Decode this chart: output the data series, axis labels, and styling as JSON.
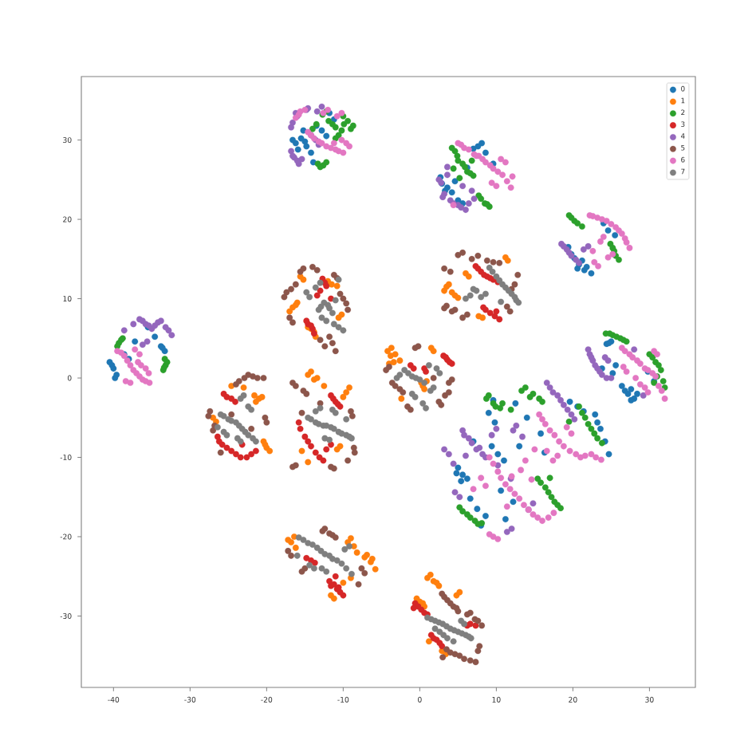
{
  "chart_data": {
    "type": "scatter",
    "xlim": [
      -44.2,
      36.0
    ],
    "ylim": [
      -39.0,
      38.0
    ],
    "xticks": [
      -40,
      -30,
      -20,
      -10,
      0,
      10,
      20,
      30
    ],
    "yticks": [
      -30,
      -20,
      -10,
      0,
      10,
      20,
      30
    ],
    "legend": "top right",
    "marker": "circle",
    "series": [
      {
        "name": "0",
        "color": "#1f77b4",
        "x": [
          -16.2,
          -15.5,
          -14.8,
          -13.5,
          -12.2,
          -15.9,
          -11.2,
          -13.9,
          2.9,
          3.6,
          4.2,
          8.1,
          6.2,
          5.6,
          9.6,
          7.0,
          20.2,
          20.8,
          21.5,
          21.8,
          24.0,
          25.5,
          19.4,
          -40.5,
          -40.0,
          -39.6,
          -33.3,
          -33.8,
          -37.2,
          -35.5,
          -38.0,
          25.0,
          24.4,
          26.4,
          27.2,
          28.0,
          27.6,
          23.8,
          30.6,
          25.6,
          5.0,
          5.6,
          6.2,
          9.0,
          9.8,
          12.5,
          14.0,
          22.9,
          23.6,
          24.2,
          24.7,
          7.0,
          8.0,
          11.2,
          10.6,
          16.3,
          7.5,
          13.0,
          -16.6,
          -15.0,
          -14.2,
          -12.8,
          -11.8,
          -15.2,
          3.3,
          2.7,
          4.6,
          7.6,
          8.6,
          5.0,
          20.6,
          21.2,
          19.8,
          22.4,
          24.6,
          -40.2,
          -39.8,
          -33.6,
          -34.6,
          -38.6,
          24.7,
          26.8,
          27.6,
          28.4,
          25.2,
          29.8,
          19.6,
          20.6,
          21.4,
          9.4,
          10.2,
          11.0,
          4.8,
          5.4,
          9.6,
          6.6,
          8.6,
          12.2,
          15.8,
          23.2
        ],
        "values": [
          29.6,
          30.2,
          29.2,
          31.8,
          30.5,
          28.8,
          32.6,
          27.2,
          24.5,
          24.0,
          23.4,
          29.6,
          26.5,
          22.0,
          27.0,
          28.9,
          15.1,
          14.3,
          13.6,
          14.0,
          19.5,
          18.0,
          16.5,
          2.0,
          1.2,
          0.4,
          3.4,
          4.0,
          4.6,
          6.4,
          2.4,
          4.6,
          4.3,
          -1.0,
          -2.0,
          -2.6,
          -1.4,
          1.2,
          -0.4,
          1.6,
          -11.3,
          -12.2,
          -12.7,
          -4.4,
          -5.6,
          -3.2,
          -5.0,
          -4.6,
          -6.4,
          -8.0,
          -9.6,
          -8.0,
          -18.6,
          -17.8,
          -14.2,
          -9.4,
          -16.5,
          -8.6,
          30.0,
          29.8,
          28.4,
          31.2,
          33.4,
          31.2,
          23.6,
          25.3,
          24.8,
          29.2,
          28.4,
          22.4,
          13.8,
          14.8,
          15.6,
          13.2,
          18.6,
          1.6,
          0.0,
          3.8,
          5.2,
          3.0,
          4.4,
          -1.6,
          -2.8,
          -2.0,
          0.6,
          0.8,
          -3.0,
          -3.6,
          -4.2,
          -8.6,
          -9.6,
          -10.4,
          -12.0,
          -13.0,
          -2.8,
          -15.2,
          -17.4,
          -15.6,
          -7.0,
          -5.6
        ]
      },
      {
        "name": "1",
        "color": "#ff7f0e",
        "x": [
          -16.6,
          -16.0,
          -13.8,
          -14.2,
          -11.5,
          -10.2,
          -15.2,
          3.5,
          4.2,
          5.0,
          7.7,
          6.4,
          11.5,
          -3.7,
          -3.2,
          -2.6,
          1.5,
          0.4,
          0.9,
          -2.4,
          -21.0,
          -21.6,
          -20.4,
          -20.0,
          -26.6,
          -24.6,
          -14.6,
          -13.8,
          -12.5,
          -9.6,
          -10.4,
          -15.4,
          -16.8,
          -16.2,
          -11.6,
          -6.9,
          -6.4,
          -5.8,
          -9.4,
          -8.6,
          -9.0,
          1.0,
          1.8,
          2.5,
          0.0,
          0.6,
          2.9,
          4.8,
          -17.0,
          -16.2,
          -13.6,
          -14.6,
          -12.0,
          -10.8,
          -15.6,
          -10.6,
          3.2,
          3.8,
          4.6,
          8.2,
          11.2,
          6.0,
          -4.2,
          -3.8,
          -3.4,
          1.8,
          0.2,
          0.6,
          -4.0,
          -21.4,
          -20.6,
          -20.2,
          -19.6,
          -27.0,
          -23.0,
          -14.2,
          -13.4,
          -10.0,
          -9.2,
          -10.8,
          -14.6,
          -17.2,
          -16.4,
          -11.2,
          -7.2,
          -6.2,
          -9.0,
          -8.2,
          -10.0,
          1.4,
          2.2,
          -0.4,
          0.4,
          3.4,
          5.2,
          1.2
        ],
        "values": [
          8.9,
          9.5,
          5.8,
          6.2,
          11.8,
          8.0,
          12.4,
          11.5,
          10.8,
          10.1,
          7.8,
          12.8,
          14.8,
          3.8,
          3.0,
          2.2,
          3.8,
          -1.0,
          -0.4,
          -2.6,
          -2.6,
          -2.2,
          -8.0,
          -8.8,
          -5.5,
          -1.0,
          0.4,
          -0.2,
          -1.0,
          -1.8,
          -8.6,
          -9.2,
          -20.7,
          -21.4,
          -27.4,
          -22.3,
          -23.2,
          -24.1,
          -20.7,
          -21.2,
          -25.2,
          -25.2,
          -25.6,
          -26.2,
          -28.2,
          -28.8,
          -34.4,
          -27.4,
          8.4,
          9.2,
          5.2,
          6.4,
          12.2,
          11.6,
          12.8,
          7.6,
          11.0,
          11.8,
          10.4,
          7.6,
          15.2,
          13.2,
          3.4,
          2.8,
          2.0,
          3.4,
          -0.6,
          -1.4,
          1.8,
          -3.0,
          -2.4,
          -8.4,
          -9.2,
          -5.0,
          -1.2,
          0.8,
          0.0,
          -2.4,
          -1.2,
          -9.0,
          -10.6,
          -20.4,
          -20.0,
          -27.8,
          -22.6,
          -22.8,
          -20.2,
          -22.0,
          -25.8,
          -24.8,
          -25.8,
          -27.8,
          -28.4,
          -34.8,
          -27.0,
          -33.2
        ]
      },
      {
        "name": "2",
        "color": "#2ca02c",
        "x": [
          -12.7,
          -11.9,
          -11.0,
          -9.9,
          -9.0,
          -10.6,
          -13.3,
          -12.6,
          -14.0,
          4.2,
          4.9,
          5.6,
          6.2,
          7.0,
          5.2,
          7.7,
          8.5,
          9.1,
          19.5,
          20.2,
          21.2,
          24.9,
          25.4,
          26.0,
          -39.3,
          -38.8,
          -33.3,
          -33.2,
          -33.5,
          24.3,
          25.2,
          26.2,
          27.0,
          30.0,
          30.8,
          31.5,
          32.0,
          31.0,
          8.7,
          9.6,
          10.5,
          11.9,
          13.3,
          14.4,
          16.0,
          20.8,
          21.6,
          22.4,
          23.2,
          15.4,
          16.4,
          17.2,
          18.0,
          5.2,
          6.2,
          7.2,
          8.1,
          19.5,
          -12.2,
          -11.4,
          -10.2,
          -9.4,
          -8.7,
          -11.0,
          -13.0,
          -12.2,
          -13.5,
          -10.0,
          4.6,
          5.0,
          5.9,
          6.6,
          4.4,
          8.0,
          8.8,
          6.8,
          19.8,
          20.6,
          25.2,
          25.6,
          -39.0,
          -39.5,
          -33.0,
          -33.4,
          24.8,
          25.7,
          26.6,
          30.4,
          31.2,
          31.8,
          30.6,
          9.0,
          9.9,
          10.8,
          13.8,
          14.8,
          15.6,
          21.2,
          22.0,
          22.8,
          23.8,
          15.8,
          16.8,
          17.6,
          18.4,
          5.6,
          6.6,
          7.6,
          17.0
        ],
        "values": [
          33.2,
          32.4,
          31.6,
          32.0,
          31.4,
          30.6,
          27.0,
          26.8,
          31.4,
          29.0,
          28.0,
          27.0,
          26.0,
          25.5,
          25.2,
          23.0,
          22.0,
          21.6,
          20.5,
          19.8,
          19.1,
          16.9,
          16.0,
          14.9,
          4.4,
          5.0,
          2.4,
          1.6,
          1.0,
          5.6,
          5.4,
          5.0,
          4.6,
          3.0,
          2.0,
          1.0,
          -1.2,
          0.2,
          -2.6,
          -3.2,
          -3.8,
          -4.0,
          -1.6,
          -2.4,
          -3.0,
          -3.6,
          -5.0,
          -6.4,
          -7.6,
          -12.7,
          -13.8,
          -15.0,
          -16.0,
          -16.3,
          -17.2,
          -18.0,
          -18.3,
          -5.5,
          33.6,
          32.0,
          31.2,
          32.4,
          31.8,
          30.2,
          26.6,
          27.2,
          32.0,
          33.0,
          28.6,
          27.4,
          26.6,
          25.8,
          26.4,
          22.6,
          21.9,
          27.4,
          20.2,
          19.5,
          16.4,
          15.4,
          4.8,
          4.0,
          2.0,
          1.3,
          5.6,
          5.2,
          4.8,
          2.6,
          1.6,
          -0.4,
          -0.6,
          -2.2,
          -3.6,
          -3.2,
          -1.2,
          -2.0,
          -2.6,
          -4.4,
          -5.8,
          -7.0,
          -8.2,
          -13.2,
          -14.4,
          -15.6,
          -16.4,
          -16.8,
          -17.6,
          -18.4,
          -12.6
        ]
      },
      {
        "name": "3",
        "color": "#d62728",
        "x": [
          -14.6,
          -14.0,
          -12.7,
          -12.2,
          -13.4,
          7.3,
          8.0,
          8.8,
          9.6,
          10.2,
          8.3,
          9.2,
          10.4,
          3.1,
          3.6,
          4.2,
          0.8,
          -1.2,
          -26.2,
          -25.2,
          -24.0,
          -22.6,
          -21.4,
          -25.6,
          -24.1,
          -23.2,
          -11.6,
          -11.0,
          -10.4,
          -15.8,
          -15.0,
          -14.2,
          -13.1,
          -12.2,
          -11.6,
          -10.8,
          -10.0,
          -14.8,
          -13.7,
          -11.0,
          -0.6,
          0.2,
          1.0,
          1.5,
          2.2,
          2.9,
          6.2,
          7.3,
          -14.8,
          -14.2,
          -13.8,
          -12.4,
          -13.0,
          -11.6,
          7.6,
          8.4,
          9.2,
          8.6,
          9.8,
          10.0,
          3.4,
          3.9,
          0.6,
          -0.8,
          -25.8,
          -24.6,
          -23.4,
          -22.0,
          -25.2,
          -24.6,
          -26.4,
          -11.3,
          -10.7,
          -15.6,
          -14.6,
          -13.6,
          -12.6,
          -11.6,
          -11.2,
          -10.4,
          -10.6,
          -14.2,
          -11.8,
          -0.2,
          0.6,
          1.8,
          2.6,
          6.6,
          -0.8
        ],
        "values": [
          6.8,
          6.2,
          12.5,
          11.6,
          10.4,
          14.1,
          13.4,
          12.8,
          12.4,
          12.1,
          8.9,
          8.2,
          7.4,
          2.8,
          2.3,
          1.8,
          0.8,
          1.6,
          -8.0,
          -8.8,
          -9.6,
          -10.0,
          -9.2,
          -2.0,
          -3.0,
          -8.4,
          -2.2,
          -3.0,
          -3.6,
          -5.6,
          -7.4,
          -8.6,
          -10.0,
          -9.0,
          -26.2,
          -26.6,
          -27.4,
          -22.7,
          -23.3,
          -25.0,
          -28.4,
          -29.2,
          -29.8,
          -32.4,
          -33.0,
          -33.8,
          -31.2,
          -31.2,
          7.2,
          6.6,
          5.6,
          12.0,
          11.0,
          10.0,
          13.8,
          13.0,
          12.6,
          8.6,
          7.8,
          8.4,
          2.6,
          2.0,
          1.2,
          1.2,
          -8.4,
          -9.2,
          -10.0,
          -9.6,
          -2.4,
          -2.6,
          -7.4,
          -2.6,
          -3.3,
          -6.4,
          -8.0,
          -9.4,
          -10.4,
          -8.4,
          -26.0,
          -27.0,
          -26.4,
          -23.0,
          -25.6,
          -28.8,
          -29.6,
          -32.8,
          -33.4,
          -31.0,
          -29.0
        ]
      },
      {
        "name": "4",
        "color": "#9467bd",
        "x": [
          -16.2,
          -16.6,
          -16.8,
          -16.4,
          -15.8,
          -14.2,
          -13.2,
          -12.8,
          -14.8,
          2.5,
          3.2,
          4.0,
          5.0,
          6.0,
          7.1,
          5.6,
          3.6,
          18.5,
          19.2,
          19.8,
          20.8,
          22.0,
          -36.6,
          -35.8,
          -35.0,
          -34.2,
          -33.2,
          -32.4,
          -36.2,
          -38.6,
          22.2,
          22.6,
          23.2,
          23.8,
          25.0,
          24.2,
          28.0,
          29.2,
          5.6,
          6.4,
          7.4,
          8.6,
          10.2,
          11.9,
          6.0,
          16.6,
          17.4,
          18.4,
          19.3,
          20.2,
          12.6,
          14.8,
          9.4,
          4.6,
          12.0,
          3.2,
          -16.0,
          -16.8,
          -16.6,
          -16.0,
          -15.4,
          -13.6,
          -14.6,
          -13.4,
          2.8,
          3.0,
          4.4,
          5.4,
          6.4,
          3.6,
          6.8,
          18.8,
          19.5,
          20.4,
          21.4,
          -36.2,
          -35.4,
          -34.6,
          -33.8,
          -32.8,
          -37.4,
          -35.6,
          22.4,
          22.9,
          23.5,
          24.4,
          24.6,
          22.0,
          5.8,
          6.8,
          7.8,
          8.2,
          17.0,
          18.0,
          18.8,
          19.8,
          12.2,
          13.4,
          4.4,
          5.2,
          11.4,
          14.2,
          10.0,
          3.8
        ],
        "values": [
          33.4,
          32.2,
          28.6,
          27.8,
          27.0,
          30.6,
          29.4,
          34.2,
          33.8,
          25.0,
          23.2,
          22.4,
          21.8,
          21.2,
          22.6,
          24.2,
          26.6,
          16.9,
          16.2,
          15.4,
          14.5,
          16.6,
          7.4,
          6.8,
          6.2,
          7.0,
          6.4,
          5.4,
          4.2,
          6.0,
          3.0,
          2.2,
          1.2,
          0.4,
          0.0,
          2.6,
          3.6,
          -2.2,
          -6.6,
          -7.6,
          -9.0,
          -10.0,
          -11.0,
          -12.7,
          -9.8,
          -0.6,
          -1.8,
          -2.8,
          -4.0,
          -5.2,
          -6.0,
          -15.8,
          -7.2,
          -14.4,
          -19.0,
          -9.0,
          33.0,
          31.6,
          28.0,
          27.4,
          27.6,
          30.0,
          34.0,
          33.6,
          24.6,
          22.8,
          22.0,
          21.5,
          22.0,
          25.6,
          23.6,
          16.6,
          15.8,
          14.9,
          16.2,
          7.2,
          6.6,
          6.6,
          7.2,
          6.0,
          6.8,
          4.6,
          2.6,
          1.6,
          0.8,
          0.0,
          2.2,
          3.6,
          -7.2,
          -8.2,
          -8.8,
          -9.6,
          -1.2,
          -2.2,
          -3.4,
          -4.6,
          -6.6,
          -7.4,
          -10.8,
          -15.0,
          -19.4,
          -16.6,
          -6.4,
          -9.6
        ]
      },
      {
        "name": "5",
        "color": "#8c564b",
        "x": [
          -17.7,
          -16.8,
          -15.6,
          -14.0,
          -11.2,
          -10.4,
          -9.6,
          -11.8,
          -13.0,
          -17.0,
          3.5,
          4.6,
          6.2,
          5.0,
          6.8,
          8.8,
          10.4,
          12.0,
          11.4,
          4.0,
          -4.4,
          -3.6,
          -2.6,
          2.5,
          3.3,
          1.8,
          -0.6,
          -1.6,
          3.8,
          -22.9,
          -21.8,
          -20.4,
          -27.4,
          -26.8,
          -24.6,
          -22.0,
          -20.2,
          -24.0,
          -16.6,
          -15.2,
          -13.0,
          -9.0,
          -8.5,
          -16.2,
          -11.6,
          -9.4,
          -12.7,
          -11.8,
          -11.0,
          -15.0,
          -7.6,
          -17.2,
          2.9,
          3.6,
          4.4,
          5.0,
          6.2,
          7.2,
          8.1,
          3.5,
          4.6,
          5.8,
          7.3,
          7.8,
          -17.4,
          -16.2,
          -15.2,
          -13.4,
          -10.8,
          -10.0,
          -9.4,
          -11.4,
          -12.4,
          -16.6,
          -11.0,
          3.2,
          4.2,
          5.6,
          5.6,
          7.6,
          9.6,
          12.4,
          11.8,
          3.2,
          12.8,
          -4.0,
          -3.2,
          -2.2,
          2.8,
          3.8,
          -0.2,
          -1.2,
          4.2,
          -22.4,
          -21.2,
          -27.6,
          -27.0,
          -20.0,
          -23.6,
          -26.0,
          -16.2,
          -14.8,
          -8.8,
          -8.6,
          -16.6,
          -11.2,
          -15.4,
          -12.4,
          -11.4,
          -15.4,
          -7.2,
          -16.8,
          -8.0,
          3.2,
          4.0,
          4.8,
          6.6,
          7.6,
          4.0,
          5.2,
          6.6,
          7.6,
          3.0
        ],
        "values": [
          10.2,
          11.2,
          13.4,
          14.0,
          13.0,
          10.6,
          9.4,
          5.2,
          4.8,
          7.6,
          9.1,
          8.6,
          8.0,
          15.5,
          15.0,
          14.8,
          14.5,
          11.2,
          9.0,
          13.4,
          1.0,
          -0.6,
          -1.4,
          -3.0,
          -2.2,
          0.0,
          3.8,
          -3.6,
          -0.6,
          0.0,
          0.2,
          0.0,
          -4.2,
          -6.0,
          -4.6,
          -6.4,
          -5.0,
          -0.8,
          -0.6,
          -1.6,
          -3.2,
          -4.2,
          -9.4,
          -11.0,
          -11.2,
          -10.4,
          -19.3,
          -19.6,
          -20.1,
          -24.0,
          -24.0,
          -21.8,
          -27.2,
          -28.0,
          -28.8,
          -29.4,
          -29.8,
          -30.4,
          -31.2,
          -34.2,
          -34.8,
          -35.4,
          -35.8,
          -33.8,
          10.8,
          11.8,
          13.8,
          13.6,
          12.6,
          10.0,
          8.6,
          4.4,
          4.0,
          7.0,
          3.4,
          8.8,
          8.4,
          7.6,
          15.8,
          15.4,
          14.6,
          11.8,
          8.4,
          13.8,
          13.0,
          1.4,
          -1.0,
          -1.8,
          -3.4,
          -1.8,
          4.0,
          -4.0,
          -0.2,
          0.4,
          0.0,
          -4.8,
          -6.6,
          -5.6,
          -0.4,
          -9.4,
          -1.0,
          -2.0,
          -4.8,
          -8.8,
          -11.2,
          -11.4,
          -4.4,
          -19.0,
          -19.8,
          -24.4,
          -24.6,
          -22.4,
          -26.0,
          -27.6,
          -28.4,
          -29.0,
          -29.6,
          -30.6,
          -34.6,
          -35.0,
          -35.6,
          -34.4,
          -35.2
        ]
      },
      {
        "name": "6",
        "color": "#e377c2",
        "x": [
          -16.2,
          -15.6,
          -14.6,
          -13.8,
          -12.8,
          -11.6,
          -10.6,
          -9.6,
          -10.2,
          -12.0,
          -10.8,
          5.0,
          5.8,
          7.1,
          7.7,
          8.6,
          9.6,
          10.8,
          11.9,
          9.4,
          10.6,
          4.4,
          22.2,
          23.2,
          24.4,
          25.6,
          26.4,
          27.0,
          24.0,
          23.3,
          22.6,
          25.2,
          -39.5,
          -38.6,
          -37.8,
          -37.0,
          -36.2,
          -35.3,
          -36.8,
          -35.8,
          -38.4,
          -37.2,
          26.4,
          27.4,
          28.4,
          29.4,
          30.4,
          31.2,
          32.0,
          28.8,
          27.0,
          29.8,
          30.6,
          9.1,
          10.2,
          11.2,
          12.4,
          13.6,
          14.8,
          16.0,
          17.5,
          9.1,
          10.2,
          11.4,
          13.2,
          16.0,
          17.0,
          18.2,
          19.6,
          21.0,
          22.4,
          23.7,
          18.0,
          8.0,
          15.0,
          7.0,
          19.8,
          -15.8,
          -15.0,
          -14.2,
          -13.2,
          -12.2,
          -11.0,
          -10.0,
          -9.2,
          -11.2,
          -12.6,
          -10.2,
          5.4,
          6.4,
          7.4,
          8.2,
          9.2,
          10.2,
          11.4,
          10.0,
          11.2,
          12.1,
          22.6,
          23.8,
          25.0,
          26.0,
          26.8,
          23.6,
          24.6,
          22.8,
          27.4,
          -39.0,
          -38.2,
          -37.4,
          -36.6,
          -35.8,
          -36.4,
          -35.4,
          -37.8,
          -36.6,
          26.8,
          27.8,
          28.8,
          29.8,
          30.8,
          31.6,
          28.2,
          26.6,
          29.4,
          31.0,
          9.6,
          10.6,
          11.8,
          13.0,
          14.2,
          15.4,
          16.8,
          9.6,
          12.0,
          14.6,
          16.4,
          17.6,
          18.8,
          20.4,
          21.6,
          23.0,
          16.6,
          15.6,
          8.6,
          13.8,
          19.2,
          17.4
        ],
        "values": [
          32.8,
          33.6,
          31.0,
          30.2,
          29.6,
          29.0,
          28.6,
          29.6,
          30.0,
          33.8,
          33.0,
          29.6,
          29.0,
          28.2,
          28.0,
          27.2,
          26.4,
          25.6,
          24.0,
          24.6,
          27.6,
          21.8,
          20.5,
          20.2,
          19.8,
          19.0,
          18.2,
          17.1,
          17.8,
          14.1,
          16.0,
          15.6,
          3.4,
          2.8,
          1.6,
          0.6,
          -0.2,
          -0.6,
          2.0,
          1.2,
          -0.4,
          3.6,
          3.8,
          3.0,
          2.2,
          1.2,
          0.6,
          -1.0,
          -2.6,
          -0.8,
          0.8,
          -1.8,
          3.4,
          -10.0,
          -11.8,
          -13.4,
          -14.6,
          -16.0,
          -17.2,
          -18.0,
          -17.0,
          -19.7,
          -20.3,
          -16.2,
          -11.6,
          -5.2,
          -6.6,
          -8.0,
          -9.2,
          -10.0,
          -9.6,
          -10.3,
          -9.8,
          -12.6,
          -9.0,
          -14.0,
          -7.0,
          33.2,
          33.8,
          30.6,
          29.8,
          29.2,
          28.8,
          28.4,
          29.2,
          29.6,
          33.4,
          33.4,
          29.4,
          28.8,
          28.0,
          27.6,
          26.8,
          26.0,
          24.8,
          24.2,
          27.2,
          25.4,
          20.4,
          20.0,
          19.4,
          18.6,
          17.6,
          17.2,
          15.2,
          14.6,
          16.4,
          3.2,
          2.2,
          1.0,
          0.2,
          -0.4,
          1.6,
          0.6,
          -0.6,
          3.0,
          3.4,
          2.6,
          1.8,
          1.0,
          0.2,
          -1.6,
          0.0,
          1.4,
          -1.2,
          3.0,
          -10.8,
          -12.6,
          -14.0,
          -15.2,
          -16.6,
          -17.6,
          -17.6,
          -20.0,
          -12.4,
          -12.8,
          -5.8,
          -7.2,
          -8.6,
          -9.6,
          -9.8,
          -10.0,
          -9.2,
          -4.6,
          -13.6,
          -10.4,
          -6.2,
          -10.4
        ]
      },
      {
        "name": "7",
        "color": "#7f7f7f",
        "x": [
          -12.5,
          -13.2,
          -11.8,
          -12.8,
          -11.2,
          -10.0,
          -14.8,
          -13.0,
          -10.6,
          9.1,
          10.0,
          10.8,
          11.6,
          12.4,
          12.9,
          7.0,
          6.0,
          8.0,
          -2.0,
          -1.0,
          0.0,
          1.4,
          2.2,
          -0.6,
          0.8,
          -3.0,
          -26.0,
          -25.0,
          -24.0,
          -23.2,
          -22.4,
          -21.4,
          -25.6,
          -23.8,
          -22.0,
          -23.0,
          -14.6,
          -13.6,
          -12.6,
          -11.6,
          -10.6,
          -9.6,
          -8.9,
          -12.4,
          -11.0,
          -13.0,
          -15.8,
          -14.6,
          -13.4,
          -12.4,
          -11.4,
          -10.2,
          -8.9,
          -14.4,
          -12.8,
          -9.8,
          1.0,
          2.0,
          3.0,
          4.0,
          5.0,
          6.0,
          6.7,
          3.6,
          2.6,
          5.4,
          -12.0,
          -12.9,
          -11.4,
          -12.2,
          -10.6,
          -14.4,
          -13.6,
          -11.0,
          9.5,
          10.4,
          11.2,
          12.0,
          12.6,
          7.4,
          6.6,
          8.6,
          10.6,
          -1.5,
          -0.5,
          0.6,
          1.8,
          2.6,
          -1.0,
          0.4,
          -2.6,
          1.2,
          -25.6,
          -24.6,
          -23.6,
          -22.8,
          -21.8,
          -25.2,
          -23.4,
          -22.4,
          -23.4,
          -26.4,
          -14.2,
          -13.2,
          -12.2,
          -11.2,
          -10.2,
          -9.2,
          -11.8,
          -11.4,
          -13.6,
          -9.6,
          -15.2,
          -14.0,
          -12.9,
          -11.8,
          -10.8,
          -9.6,
          -13.8,
          -12.2,
          -9.2,
          -16.0,
          1.5,
          2.5,
          3.5,
          4.5,
          5.5,
          6.4,
          3.1,
          4.4,
          5.8,
          2.0
        ],
        "values": [
          9.5,
          8.6,
          8.8,
          7.6,
          6.8,
          6.0,
          10.8,
          12.0,
          12.4,
          13.9,
          12.8,
          11.8,
          11.0,
          10.2,
          9.5,
          11.2,
          10.0,
          10.2,
          1.0,
          0.2,
          -0.2,
          -1.6,
          1.2,
          -2.4,
          -3.8,
          0.0,
          -4.6,
          -5.2,
          -5.6,
          -6.4,
          -7.2,
          -8.0,
          -6.8,
          -7.6,
          -4.0,
          -2.2,
          -5.0,
          -5.6,
          -6.0,
          -6.2,
          -6.8,
          -7.2,
          -7.6,
          -7.6,
          -4.4,
          -3.8,
          -20.1,
          -20.8,
          -21.4,
          -22.2,
          -22.8,
          -23.4,
          -24.7,
          -23.6,
          -24.0,
          -21.6,
          -30.2,
          -30.6,
          -31.0,
          -31.6,
          -32.0,
          -32.4,
          -32.8,
          -32.8,
          -32.0,
          -30.6,
          9.2,
          9.0,
          8.2,
          7.2,
          6.4,
          10.2,
          11.4,
          9.8,
          13.4,
          12.3,
          11.4,
          10.6,
          9.8,
          11.0,
          10.4,
          10.6,
          9.6,
          0.6,
          0.0,
          -0.6,
          -1.2,
          0.6,
          -2.0,
          -3.2,
          0.4,
          1.6,
          -4.8,
          -5.4,
          -6.0,
          -6.8,
          -7.6,
          -7.2,
          -8.0,
          -3.6,
          -2.6,
          -6.2,
          -5.2,
          -5.8,
          -6.0,
          -6.4,
          -7.0,
          -7.4,
          -7.8,
          -4.0,
          -4.2,
          -5.2,
          -20.4,
          -21.0,
          -21.8,
          -22.4,
          -23.0,
          -24.0,
          -24.0,
          -24.4,
          -21.2,
          -22.4,
          -30.4,
          -30.8,
          -31.3,
          -31.8,
          -32.2,
          -32.6,
          -32.4,
          -33.2,
          -31.0,
          -31.6
        ]
      }
    ]
  }
}
